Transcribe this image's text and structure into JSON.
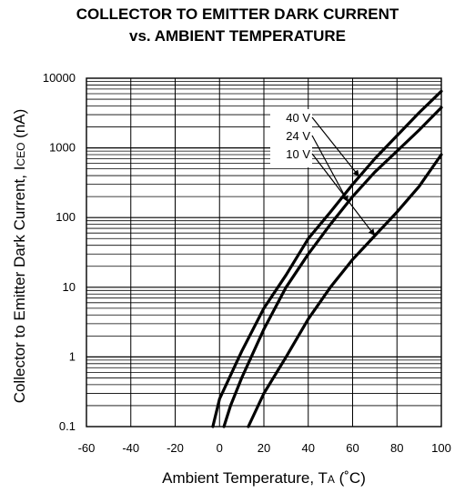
{
  "chart_data": {
    "type": "line",
    "title_line1": "COLLECTOR TO EMITTER DARK CURRENT",
    "title_line2": "vs. AMBIENT TEMPERATURE",
    "xlabel_main": "Ambient Temperature, T",
    "xlabel_sub": "A",
    "xlabel_unit": " (˚C)",
    "ylabel_main": "Collector to Emitter Dark Current, I",
    "ylabel_sub": "CEO",
    "ylabel_unit": " (nA)",
    "xlim": [
      -60,
      100
    ],
    "ylim": [
      0.1,
      10000
    ],
    "y_scale": "log",
    "x_ticks": [
      "-60",
      "-40",
      "-20",
      "0",
      "20",
      "40",
      "60",
      "80",
      "100"
    ],
    "y_ticks": [
      "0.1",
      "1",
      "10",
      "100",
      "1000",
      "10000"
    ],
    "grid": true,
    "series": [
      {
        "name": "40 V",
        "points": [
          [
            -3,
            0.1
          ],
          [
            0,
            0.25
          ],
          [
            10,
            1.2
          ],
          [
            20,
            5
          ],
          [
            30,
            15
          ],
          [
            40,
            50
          ],
          [
            50,
            120
          ],
          [
            60,
            300
          ],
          [
            70,
            700
          ],
          [
            80,
            1500
          ],
          [
            90,
            3200
          ],
          [
            100,
            6500
          ]
        ]
      },
      {
        "name": "24 V",
        "points": [
          [
            2,
            0.1
          ],
          [
            5,
            0.2
          ],
          [
            10,
            0.5
          ],
          [
            20,
            2.5
          ],
          [
            30,
            10
          ],
          [
            40,
            30
          ],
          [
            50,
            80
          ],
          [
            60,
            200
          ],
          [
            70,
            450
          ],
          [
            80,
            900
          ],
          [
            90,
            1800
          ],
          [
            100,
            3800
          ]
        ]
      },
      {
        "name": "10 V",
        "points": [
          [
            13,
            0.1
          ],
          [
            20,
            0.3
          ],
          [
            30,
            1
          ],
          [
            40,
            3.5
          ],
          [
            50,
            10
          ],
          [
            60,
            25
          ],
          [
            70,
            55
          ],
          [
            80,
            120
          ],
          [
            90,
            280
          ],
          [
            100,
            800
          ]
        ]
      }
    ],
    "annotations": [
      "40 V",
      "24 V",
      "10 V"
    ]
  }
}
